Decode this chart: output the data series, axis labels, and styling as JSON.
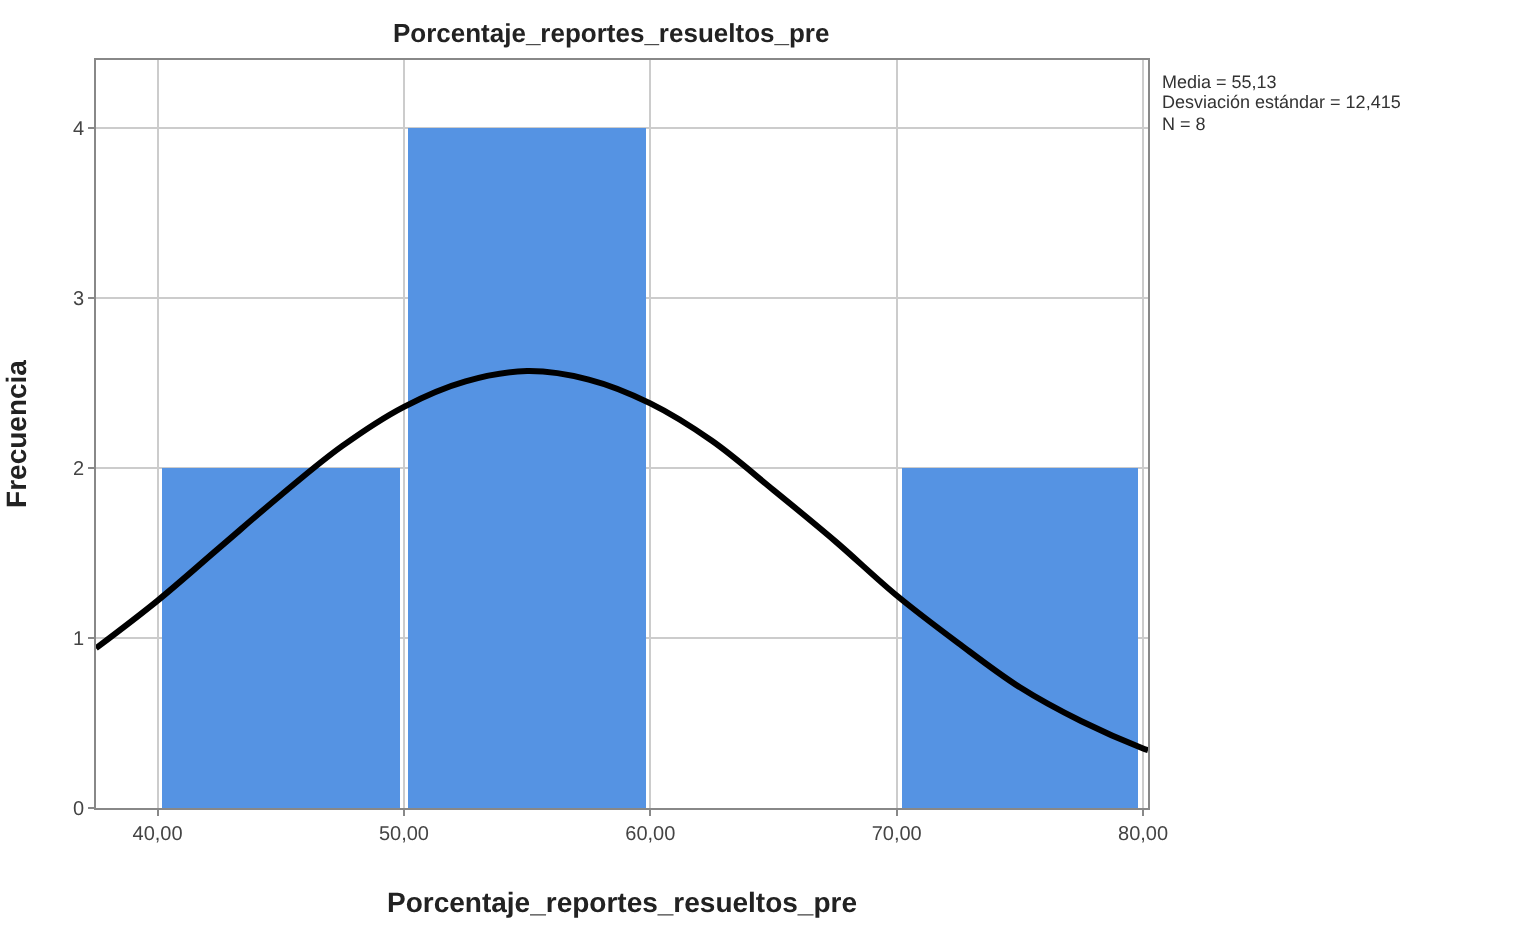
{
  "chart_data": {
    "type": "histogram",
    "title": "Porcentaje_reportes_resueltos_pre",
    "xlabel": "Porcentaje_reportes_resueltos_pre",
    "ylabel": "Frecuencia",
    "bins": [
      40,
      50,
      60,
      70,
      80
    ],
    "values": [
      2,
      4,
      0,
      2
    ],
    "color": "#5593e3",
    "series": [
      {
        "type": "line",
        "color": "#000000",
        "x": [
          37.5,
          40,
          42.5,
          45,
          47.5,
          50,
          52.5,
          55,
          57.5,
          60,
          62.5,
          65,
          67.5,
          70,
          72.5,
          75,
          77.5,
          80,
          80.2
        ],
        "values": [
          0.94,
          1.22,
          1.53,
          1.84,
          2.13,
          2.36,
          2.51,
          2.57,
          2.52,
          2.38,
          2.16,
          1.87,
          1.57,
          1.25,
          0.97,
          0.71,
          0.51,
          0.35,
          0.34
        ]
      }
    ],
    "annotations": [
      "Media = 55,13",
      "Desviación estándar = 12,415",
      "N = 8"
    ],
    "xlim": [
      37.5,
      80.2
    ],
    "xticks": [
      {
        "value": 40,
        "label": "40,00"
      },
      {
        "value": 50,
        "label": "50,00"
      },
      {
        "value": 60,
        "label": "60,00"
      },
      {
        "value": 70,
        "label": "70,00"
      },
      {
        "value": 80,
        "label": "80,00"
      }
    ],
    "ylim": [
      0,
      4.4
    ],
    "yticks": [
      0,
      1,
      2,
      3,
      4
    ],
    "grid": true
  }
}
